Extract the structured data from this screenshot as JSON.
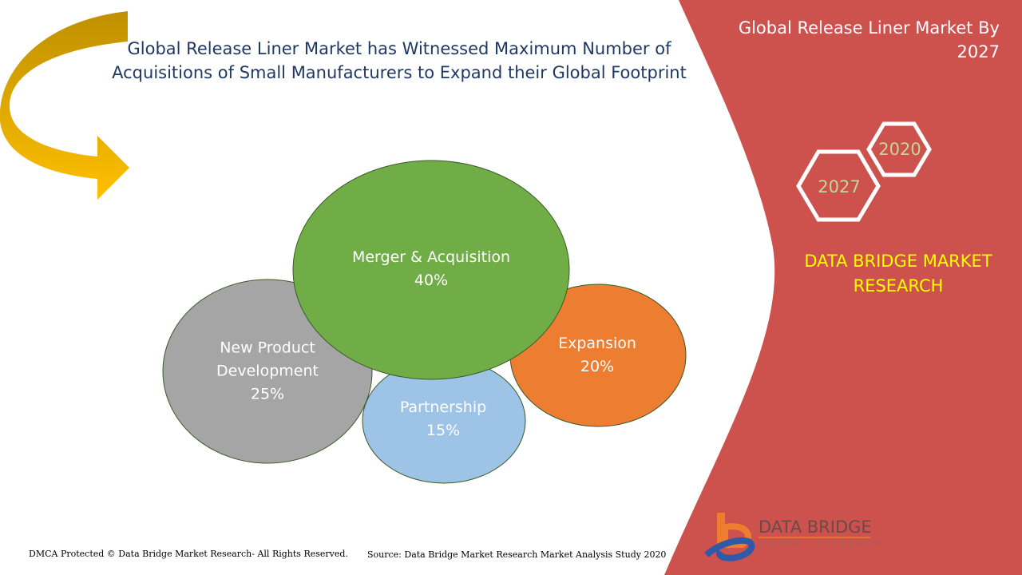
{
  "header": {
    "title": "Global Release Liner Market has Witnessed Maximum Number of Acquisitions of Small Manufacturers to Expand their Global Footprint",
    "side_title": "Global Release Liner Market By 2027"
  },
  "side_panel": {
    "hex_years": [
      "2020",
      "2027"
    ],
    "brand": "DATA BRIDGE MARKET RESEARCH",
    "logo_title": "DATA BRIDGE",
    "logo_subtitle": "MARKET RESEARCH",
    "panel_color": "#cd514d"
  },
  "chart_data": {
    "type": "bubble",
    "title": "Global Release Liner Market has Witnessed Maximum Number of Acquisitions of Small Manufacturers to Expand their Global Footprint",
    "segments": [
      {
        "label": "New Product Development",
        "value": "25%",
        "color": "#a5a5a5"
      },
      {
        "label": "Partnership",
        "value": "15%",
        "color": "#9dc3e6"
      },
      {
        "label": "Expansion",
        "value": "20%",
        "color": "#ed7d31"
      },
      {
        "label": "Merger & Acquisition",
        "value": "40%",
        "color": "#70ad47"
      }
    ]
  },
  "footer": {
    "copyright": "DMCA Protected © Data Bridge Market Research- All Rights Reserved.",
    "source": "Source: Data Bridge Market Research Market Analysis Study 2020"
  }
}
